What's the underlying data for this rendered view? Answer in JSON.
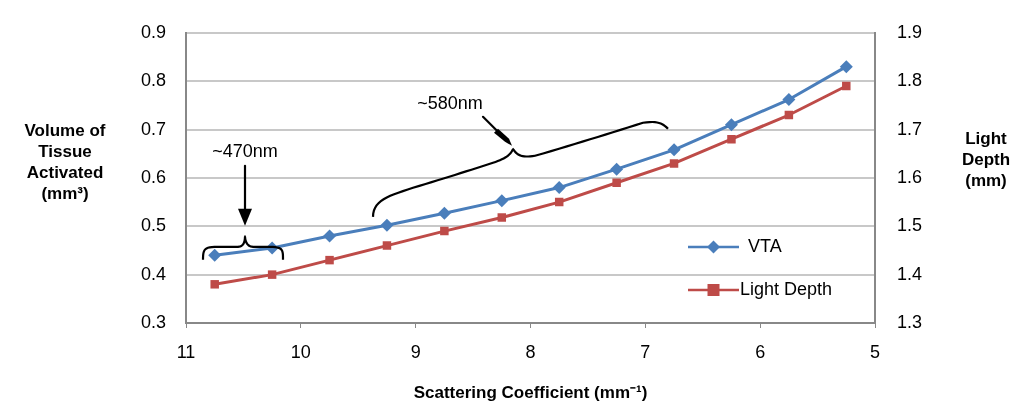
{
  "chart_data": {
    "type": "line",
    "xlabel": "Scattering Coefficient (mm⁻¹)",
    "ylabel": "Volume of Tissue Activated (mm³)",
    "y2label": "Light Depth (mm)",
    "x": [
      10.75,
      10.25,
      9.75,
      9.25,
      8.75,
      8.25,
      7.75,
      7.25,
      6.75,
      6.25,
      5.75,
      5.25
    ],
    "series": [
      {
        "name": "VTA",
        "color": "#4a7ebb",
        "marker": "diamond",
        "values": [
          0.44,
          0.455,
          0.48,
          0.502,
          0.527,
          0.553,
          0.58,
          0.618,
          0.658,
          0.71,
          0.762,
          0.83
        ]
      },
      {
        "name": "Light Depth",
        "color": "#be4b48",
        "marker": "square",
        "axis": "y2",
        "values": [
          1.38,
          1.4,
          1.43,
          1.46,
          1.49,
          1.518,
          1.55,
          1.59,
          1.63,
          1.68,
          1.73,
          1.79
        ]
      }
    ],
    "xlim": [
      11,
      5
    ],
    "xticks": [
      11,
      10,
      9,
      8,
      7,
      6,
      5
    ],
    "ylim": [
      0.3,
      0.9
    ],
    "yticks": [
      0.3,
      0.4,
      0.5,
      0.6,
      0.7,
      0.8,
      0.9
    ],
    "y2lim": [
      1.3,
      1.9
    ],
    "y2ticks": [
      1.3,
      1.4,
      1.5,
      1.6,
      1.7,
      1.8,
      1.9
    ],
    "annotations": [
      "~470nm",
      "~580nm"
    ],
    "grid": "y",
    "legend": "bottom right",
    "line_style": "solid"
  }
}
